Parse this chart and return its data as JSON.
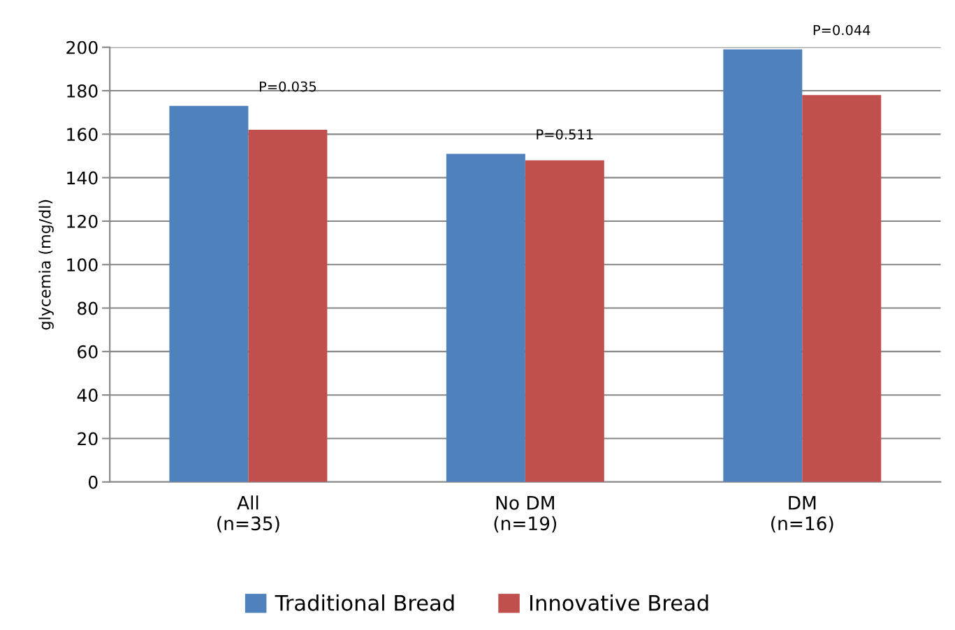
{
  "chart_data": {
    "type": "bar",
    "ylabel": "glycemia (mg/dl)",
    "categories": [
      "All\n(n=35)",
      "No DM\n(n=19)",
      "DM\n(n=16)"
    ],
    "series": [
      {
        "name": "Traditional Bread",
        "color": "#4f81bd",
        "values": [
          173,
          151,
          199
        ]
      },
      {
        "name": "Innovative Bread",
        "color": "#c0504d",
        "values": [
          162,
          148,
          178
        ]
      }
    ],
    "ylim": [
      0,
      200
    ],
    "yticks": [
      0,
      20,
      40,
      60,
      80,
      100,
      120,
      140,
      160,
      180,
      200
    ],
    "grid": "y",
    "legend": "bottom",
    "annotations": [
      "P=0.035",
      "P=0.511",
      "P=0.044"
    ]
  }
}
